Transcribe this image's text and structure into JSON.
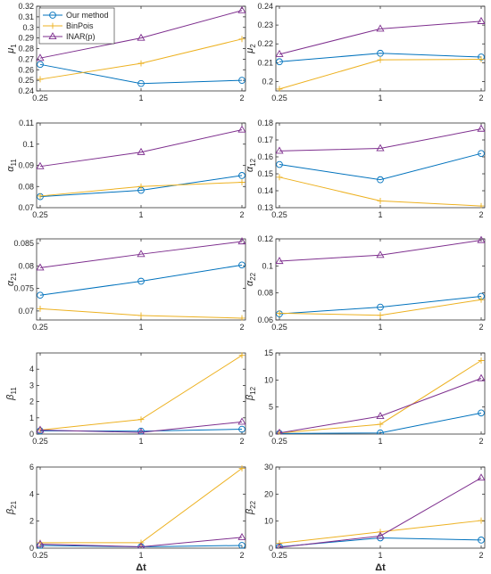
{
  "colors": {
    "our": "#0072BD",
    "binpois": "#EDB120",
    "inar": "#7E2F8E"
  },
  "legend": {
    "entries": [
      "Our method",
      "BinPois",
      "INAR(p)"
    ]
  },
  "chart_data": [
    {
      "type": "line",
      "ylabel": "μ",
      "ylabel_sub": "1",
      "xlabel": "",
      "categories": [
        "0.25",
        "1",
        "2"
      ],
      "ylim": [
        0.24,
        0.32
      ],
      "yticks": [
        0.24,
        0.25,
        0.26,
        0.27,
        0.28,
        0.29,
        0.3,
        0.31,
        0.32
      ],
      "yticklabels": [
        "0.24",
        "0.25",
        "0.26",
        "0.27",
        "0.28",
        "0.29",
        "0.3",
        "0.31",
        "0.32"
      ],
      "series": [
        {
          "name": "Our method",
          "values": [
            0.265,
            0.247,
            0.25
          ]
        },
        {
          "name": "BinPois",
          "values": [
            0.251,
            0.266,
            0.289
          ]
        },
        {
          "name": "INAR(p)",
          "values": [
            0.271,
            0.29,
            0.316
          ]
        }
      ]
    },
    {
      "type": "line",
      "ylabel": "μ",
      "ylabel_sub": "2",
      "xlabel": "",
      "categories": [
        "0.25",
        "1",
        "2"
      ],
      "ylim": [
        0.195,
        0.24
      ],
      "yticks": [
        0.2,
        0.21,
        0.22,
        0.23,
        0.24
      ],
      "yticklabels": [
        "0.2",
        "0.21",
        "0.22",
        "0.23",
        "0.24"
      ],
      "series": [
        {
          "name": "Our method",
          "values": [
            0.2105,
            0.215,
            0.213
          ]
        },
        {
          "name": "BinPois",
          "values": [
            0.196,
            0.2115,
            0.2118
          ]
        },
        {
          "name": "INAR(p)",
          "values": [
            0.2145,
            0.228,
            0.232
          ]
        }
      ]
    },
    {
      "type": "line",
      "ylabel": "α",
      "ylabel_sub": "11",
      "xlabel": "",
      "categories": [
        "0.25",
        "1",
        "2"
      ],
      "ylim": [
        0.07,
        0.11
      ],
      "yticks": [
        0.07,
        0.08,
        0.09,
        0.1,
        0.11
      ],
      "yticklabels": [
        "0.07",
        "0.08",
        "0.09",
        "0.1",
        "0.11"
      ],
      "series": [
        {
          "name": "Our method",
          "values": [
            0.0752,
            0.0782,
            0.0852
          ]
        },
        {
          "name": "BinPois",
          "values": [
            0.0755,
            0.08,
            0.082
          ]
        },
        {
          "name": "INAR(p)",
          "values": [
            0.0895,
            0.0962,
            0.1068
          ]
        }
      ]
    },
    {
      "type": "line",
      "ylabel": "α",
      "ylabel_sub": "12",
      "xlabel": "",
      "categories": [
        "0.25",
        "1",
        "2"
      ],
      "ylim": [
        0.13,
        0.18
      ],
      "yticks": [
        0.13,
        0.14,
        0.15,
        0.16,
        0.17,
        0.18
      ],
      "yticklabels": [
        "0.13",
        "0.14",
        "0.15",
        "0.16",
        "0.17",
        "0.18"
      ],
      "series": [
        {
          "name": "Our method",
          "values": [
            0.1555,
            0.1465,
            0.162
          ]
        },
        {
          "name": "BinPois",
          "values": [
            0.148,
            0.134,
            0.131
          ]
        },
        {
          "name": "INAR(p)",
          "values": [
            0.1635,
            0.165,
            0.1765
          ]
        }
      ]
    },
    {
      "type": "line",
      "ylabel": "α",
      "ylabel_sub": "21",
      "xlabel": "",
      "categories": [
        "0.25",
        "1",
        "2"
      ],
      "ylim": [
        0.068,
        0.086
      ],
      "yticks": [
        0.07,
        0.075,
        0.08,
        0.085
      ],
      "yticklabels": [
        "0.07",
        "0.075",
        "0.08",
        "0.085"
      ],
      "series": [
        {
          "name": "Our method",
          "values": [
            0.0735,
            0.0766,
            0.0802
          ]
        },
        {
          "name": "BinPois",
          "values": [
            0.0705,
            0.069,
            0.0684
          ]
        },
        {
          "name": "INAR(p)",
          "values": [
            0.0796,
            0.0826,
            0.0854
          ]
        }
      ]
    },
    {
      "type": "line",
      "ylabel": "α",
      "ylabel_sub": "22",
      "xlabel": "",
      "categories": [
        "0.25",
        "1",
        "2"
      ],
      "ylim": [
        0.06,
        0.12
      ],
      "yticks": [
        0.06,
        0.08,
        0.1,
        0.12
      ],
      "yticklabels": [
        "0.06",
        "0.08",
        "0.1",
        "0.12"
      ],
      "series": [
        {
          "name": "Our method",
          "values": [
            0.0645,
            0.0695,
            0.0775
          ]
        },
        {
          "name": "BinPois",
          "values": [
            0.065,
            0.0635,
            0.075
          ]
        },
        {
          "name": "INAR(p)",
          "values": [
            0.1035,
            0.108,
            0.119
          ]
        }
      ]
    },
    {
      "type": "line",
      "ylabel": "β",
      "ylabel_sub": "11",
      "xlabel": "",
      "categories": [
        "0.25",
        "1",
        "2"
      ],
      "ylim": [
        0,
        5
      ],
      "yticks": [
        0,
        1,
        2,
        3,
        4
      ],
      "yticklabels": [
        "0",
        "1",
        "2",
        "3",
        "4"
      ],
      "series": [
        {
          "name": "Our method",
          "values": [
            0.2,
            0.18,
            0.3
          ]
        },
        {
          "name": "BinPois",
          "values": [
            0.25,
            0.9,
            4.85
          ]
        },
        {
          "name": "INAR(p)",
          "values": [
            0.25,
            0.1,
            0.75
          ]
        }
      ]
    },
    {
      "type": "line",
      "ylabel": "β",
      "ylabel_sub": "12",
      "xlabel": "",
      "categories": [
        "0.25",
        "1",
        "2"
      ],
      "ylim": [
        0,
        15
      ],
      "yticks": [
        0,
        5,
        10,
        15
      ],
      "yticklabels": [
        "0",
        "5",
        "10",
        "15"
      ],
      "series": [
        {
          "name": "Our method",
          "values": [
            0.1,
            0.2,
            3.9
          ]
        },
        {
          "name": "BinPois",
          "values": [
            0.2,
            1.8,
            13.6
          ]
        },
        {
          "name": "INAR(p)",
          "values": [
            0.2,
            3.3,
            10.3
          ]
        }
      ]
    },
    {
      "type": "line",
      "ylabel": "β",
      "ylabel_sub": "21",
      "xlabel": "Δt",
      "categories": [
        "0.25",
        "1",
        "2"
      ],
      "ylim": [
        0,
        6
      ],
      "yticks": [
        0,
        2,
        4,
        6
      ],
      "yticklabels": [
        "0",
        "2",
        "4",
        "6"
      ],
      "series": [
        {
          "name": "Our method",
          "values": [
            0.2,
            0.1,
            0.2
          ]
        },
        {
          "name": "BinPois",
          "values": [
            0.4,
            0.4,
            5.9
          ]
        },
        {
          "name": "INAR(p)",
          "values": [
            0.3,
            0.1,
            0.8
          ]
        }
      ]
    },
    {
      "type": "line",
      "ylabel": "β",
      "ylabel_sub": "22",
      "xlabel": "Δt",
      "categories": [
        "0.25",
        "1",
        "2"
      ],
      "ylim": [
        0,
        30
      ],
      "yticks": [
        0,
        10,
        20,
        30
      ],
      "yticklabels": [
        "0",
        "10",
        "20",
        "30"
      ],
      "series": [
        {
          "name": "Our method",
          "values": [
            0.5,
            3.8,
            3.0
          ]
        },
        {
          "name": "BinPois",
          "values": [
            1.8,
            6.0,
            10.2
          ]
        },
        {
          "name": "INAR(p)",
          "values": [
            0.3,
            4.5,
            26.0
          ]
        }
      ]
    }
  ]
}
